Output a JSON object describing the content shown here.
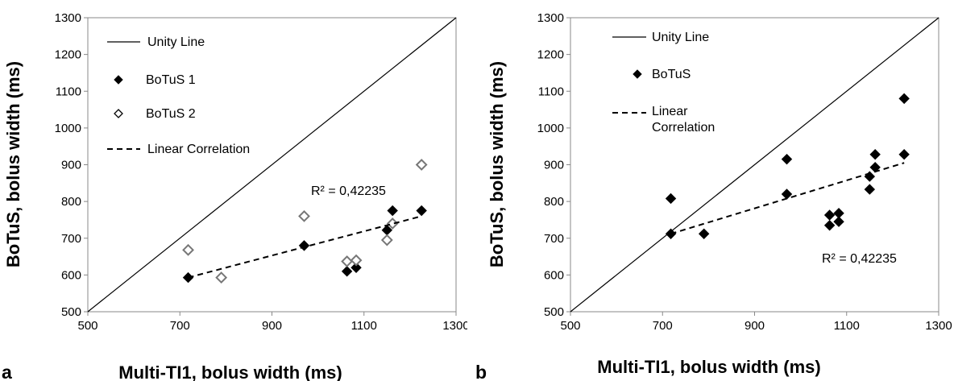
{
  "chart_data": [
    {
      "type": "scatter",
      "panel_label": "a",
      "xlabel": "Multi-TI1, bolus width (ms)",
      "ylabel": "BoTuS, bolus width (ms)",
      "xlim": [
        500,
        1300
      ],
      "ylim": [
        500,
        1300
      ],
      "xticks": [
        "500",
        "700",
        "900",
        "1100",
        "1300"
      ],
      "yticks": [
        "500",
        "600",
        "700",
        "800",
        "900",
        "1000",
        "1100",
        "1200",
        "1300"
      ],
      "grid": false,
      "legend_position": "top-left",
      "annotation": "R² = 0,42235",
      "series": [
        {
          "name": "Unity Line",
          "kind": "line",
          "style": "solid",
          "points": [
            [
              500,
              500
            ],
            [
              1300,
              1300
            ]
          ]
        },
        {
          "name": "BoTuS 1",
          "kind": "scatter",
          "marker": "filled-diamond",
          "points": [
            [
              718,
              593
            ],
            [
              970,
              680
            ],
            [
              1063,
              610
            ],
            [
              1083,
              620
            ],
            [
              1150,
              722
            ],
            [
              1162,
              775
            ],
            [
              1225,
              775
            ]
          ]
        },
        {
          "name": "BoTuS 2",
          "kind": "scatter",
          "marker": "open-diamond",
          "points": [
            [
              718,
              668
            ],
            [
              790,
              593
            ],
            [
              970,
              760
            ],
            [
              1063,
              637
            ],
            [
              1083,
              640
            ],
            [
              1150,
              695
            ],
            [
              1162,
              740
            ],
            [
              1225,
              900
            ]
          ]
        },
        {
          "name": "Linear Correlation",
          "kind": "line",
          "style": "dashed",
          "points": [
            [
              718,
              593
            ],
            [
              1225,
              760
            ]
          ]
        }
      ]
    },
    {
      "type": "scatter",
      "panel_label": "b",
      "xlabel": "Multi-TI1, bolus width (ms)",
      "ylabel": "BoTuS, bolus width (ms)",
      "xlim": [
        500,
        1300
      ],
      "ylim": [
        500,
        1300
      ],
      "xticks": [
        "500",
        "700",
        "900",
        "1100",
        "1300"
      ],
      "yticks": [
        "500",
        "600",
        "700",
        "800",
        "900",
        "1000",
        "1100",
        "1200",
        "1300"
      ],
      "grid": false,
      "legend_position": "top-left",
      "annotation": "R² = 0,42235",
      "series": [
        {
          "name": "Unity Line",
          "kind": "line",
          "style": "solid",
          "points": [
            [
              500,
              500
            ],
            [
              1300,
              1300
            ]
          ]
        },
        {
          "name": "BoTuS",
          "kind": "scatter",
          "marker": "filled-diamond",
          "points": [
            [
              718,
              808
            ],
            [
              718,
              712
            ],
            [
              790,
              712
            ],
            [
              970,
              915
            ],
            [
              970,
              820
            ],
            [
              1063,
              763
            ],
            [
              1063,
              735
            ],
            [
              1083,
              768
            ],
            [
              1083,
              745
            ],
            [
              1150,
              868
            ],
            [
              1150,
              833
            ],
            [
              1162,
              928
            ],
            [
              1162,
              893
            ],
            [
              1225,
              1080
            ],
            [
              1225,
              928
            ]
          ]
        },
        {
          "name": "Linear Correlation",
          "kind": "line",
          "style": "dashed",
          "legend_lines": [
            "Linear",
            "Correlation"
          ],
          "points": [
            [
              718,
              712
            ],
            [
              1225,
              905
            ]
          ]
        }
      ]
    }
  ]
}
